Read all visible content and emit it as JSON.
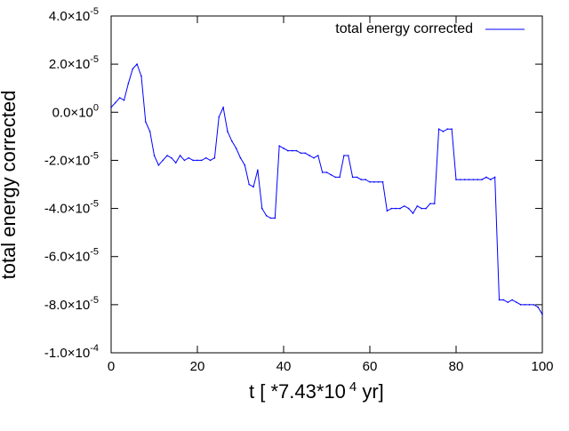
{
  "chart_data": {
    "type": "line",
    "title": "",
    "xlabel": "t [ *7.43*10",
    "xlabel_sup": "4",
    "xlabel_suffix": " yr]",
    "ylabel": "total energy corrected",
    "xlim": [
      0,
      100
    ],
    "ylim": [
      -0.0001,
      4e-05
    ],
    "x_ticks": [
      0,
      20,
      40,
      60,
      80,
      100
    ],
    "x_tick_labels": [
      "0",
      "20",
      "40",
      "60",
      "80",
      "100"
    ],
    "y_ticks": [
      4e-05,
      2e-05,
      0,
      -2e-05,
      -4e-05,
      -6e-05,
      -8e-05,
      -0.0001
    ],
    "y_tick_labels": [
      {
        "mant": "4.0",
        "exp": "-5"
      },
      {
        "mant": "2.0",
        "exp": "-5"
      },
      {
        "mant": "0.0",
        "exp": "0"
      },
      {
        "mant": "-2.0",
        "exp": "-5"
      },
      {
        "mant": "-4.0",
        "exp": "-5"
      },
      {
        "mant": "-6.0",
        "exp": "-5"
      },
      {
        "mant": "-8.0",
        "exp": "-5"
      },
      {
        "mant": "-1.0",
        "exp": "-4"
      }
    ],
    "grid": false,
    "legend_position": "top-right",
    "series": [
      {
        "name": "total energy corrected",
        "color": "#0000ff",
        "x": [
          0,
          1,
          2,
          3,
          4,
          5,
          6,
          7,
          8,
          9,
          10,
          11,
          12,
          13,
          14,
          15,
          16,
          17,
          18,
          19,
          20,
          21,
          22,
          23,
          24,
          25,
          26,
          27,
          28,
          29,
          30,
          31,
          32,
          33,
          34,
          35,
          36,
          37,
          38,
          39,
          40,
          41,
          42,
          43,
          44,
          45,
          46,
          47,
          48,
          49,
          50,
          51,
          52,
          53,
          54,
          55,
          56,
          57,
          58,
          59,
          60,
          61,
          62,
          63,
          64,
          65,
          66,
          67,
          68,
          69,
          70,
          71,
          72,
          73,
          74,
          75,
          76,
          77,
          78,
          79,
          80,
          81,
          82,
          83,
          84,
          85,
          86,
          87,
          88,
          89,
          90,
          91,
          92,
          93,
          94,
          95,
          96,
          97,
          98,
          99,
          100
        ],
        "y": [
          2e-06,
          4e-06,
          6e-06,
          5e-06,
          1.2e-05,
          1.8e-05,
          2e-05,
          1.5e-05,
          -4e-06,
          -8e-06,
          -1.8e-05,
          -2.2e-05,
          -2e-05,
          -1.8e-05,
          -1.9e-05,
          -2.1e-05,
          -1.8e-05,
          -2e-05,
          -1.9e-05,
          -2e-05,
          -2e-05,
          -2e-05,
          -1.9e-05,
          -2e-05,
          -1.9e-05,
          -2e-06,
          2e-06,
          -8e-06,
          -1.2e-05,
          -1.5e-05,
          -1.9e-05,
          -2.2e-05,
          -3e-05,
          -3.1e-05,
          -2.4e-05,
          -4e-05,
          -4.3e-05,
          -4.4e-05,
          -4.4e-05,
          -1.4e-05,
          -1.5e-05,
          -1.6e-05,
          -1.6e-05,
          -1.6e-05,
          -1.7e-05,
          -1.7e-05,
          -1.8e-05,
          -1.9e-05,
          -1.8e-05,
          -2.5e-05,
          -2.5e-05,
          -2.6e-05,
          -2.7e-05,
          -2.7e-05,
          -1.8e-05,
          -1.8e-05,
          -2.7e-05,
          -2.7e-05,
          -2.8e-05,
          -2.8e-05,
          -2.9e-05,
          -2.9e-05,
          -2.9e-05,
          -2.9e-05,
          -4.1e-05,
          -4e-05,
          -4e-05,
          -4e-05,
          -3.9e-05,
          -4e-05,
          -4.2e-05,
          -3.9e-05,
          -4e-05,
          -4e-05,
          -3.8e-05,
          -3.8e-05,
          -7e-06,
          -8e-06,
          -7e-06,
          -7e-06,
          -2.8e-05,
          -2.8e-05,
          -2.8e-05,
          -2.8e-05,
          -2.8e-05,
          -2.8e-05,
          -2.8e-05,
          -2.7e-05,
          -2.8e-05,
          -2.7e-05,
          -7.8e-05,
          -7.8e-05,
          -7.9e-05,
          -7.8e-05,
          -7.9e-05,
          -8e-05,
          -8e-05,
          -8e-05,
          -8e-05,
          -8.1e-05,
          -8.4e-05
        ]
      }
    ]
  }
}
